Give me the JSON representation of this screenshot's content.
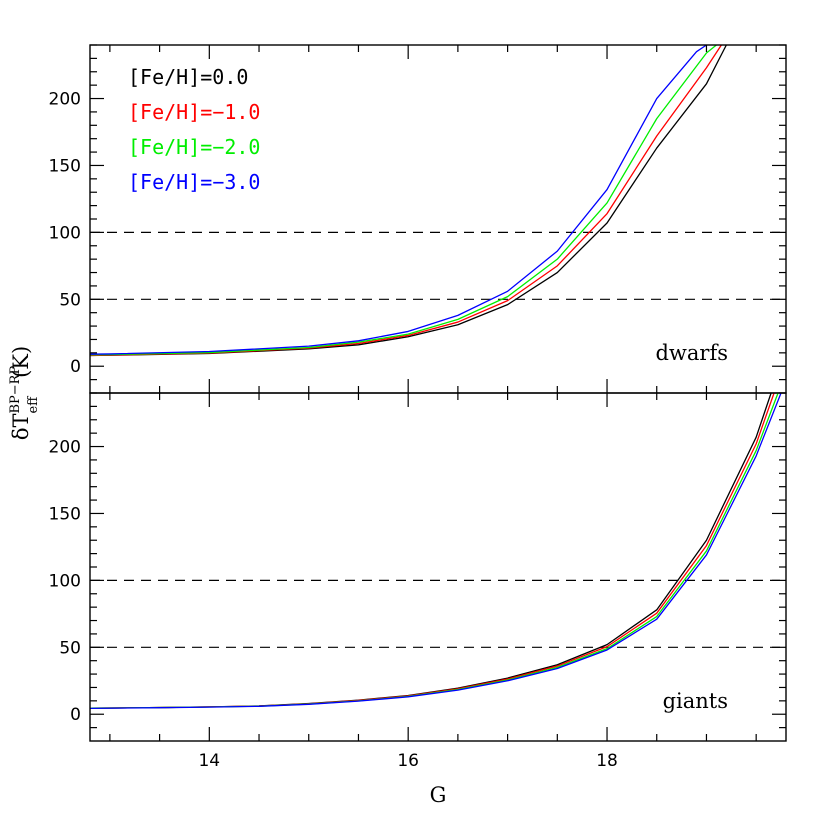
{
  "chart_data": {
    "type": "line",
    "xlabel": "G",
    "ylabel": {
      "prefix": "δT",
      "superscript": "BP−RP",
      "subscript": "eff",
      "unit": "(K)"
    },
    "xlim": [
      12.8,
      19.8
    ],
    "xticks": [
      {
        "value": 14,
        "label": "14"
      },
      {
        "value": 16,
        "label": "16"
      },
      {
        "value": 18,
        "label": "18"
      }
    ],
    "panels": [
      {
        "label": "dwarfs",
        "ylim": [
          -20,
          240
        ],
        "yticks": [
          {
            "value": 0,
            "label": "0"
          },
          {
            "value": 50,
            "label": "50"
          },
          {
            "value": 100,
            "label": "100"
          },
          {
            "value": 150,
            "label": "150"
          },
          {
            "value": 200,
            "label": "200"
          }
        ],
        "reference_lines": [
          50,
          100
        ],
        "series": [
          {
            "name": "[Fe/H]=0.0",
            "color": "#000000",
            "x": [
              12.8,
              13.0,
              14.0,
              15.0,
              15.5,
              16.0,
              16.5,
              17.0,
              17.5,
              18.0,
              18.5,
              19.0,
              19.2
            ],
            "y": [
              8,
              8.2,
              9.5,
              13,
              16,
              22,
              31,
              46,
              70,
              107,
              163,
              211,
              240
            ]
          },
          {
            "name": "[Fe/H]=−1.0",
            "color": "#ff0000",
            "x": [
              12.8,
              13.0,
              14.0,
              15.0,
              15.5,
              16.0,
              16.5,
              17.0,
              17.5,
              18.0,
              18.5,
              19.0,
              19.15
            ],
            "y": [
              8,
              8.3,
              9.8,
              13.5,
              17,
              23,
              33,
              49,
              75,
              114,
              172,
              223,
              240
            ]
          },
          {
            "name": "[Fe/H]=−2.0",
            "color": "#00ee00",
            "x": [
              12.8,
              13.0,
              14.0,
              15.0,
              15.5,
              16.0,
              16.5,
              17.0,
              17.5,
              18.0,
              18.5,
              19.0,
              19.1
            ],
            "y": [
              8.5,
              8.7,
              10.2,
              14,
              18,
              24,
              35,
              52,
              80,
              122,
              185,
              234,
              240
            ]
          },
          {
            "name": "[Fe/H]=−3.0",
            "color": "#0000ff",
            "x": [
              12.8,
              13.0,
              14.0,
              15.0,
              15.5,
              16.0,
              16.5,
              17.0,
              17.5,
              18.0,
              18.5,
              18.9,
              19.0
            ],
            "y": [
              9,
              9.2,
              11,
              15,
              19,
              26,
              38,
              56,
              86,
              132,
              200,
              235,
              240
            ]
          }
        ]
      },
      {
        "label": "giants",
        "ylim": [
          -20,
          240
        ],
        "yticks": [
          {
            "value": 0,
            "label": "0"
          },
          {
            "value": 50,
            "label": "50"
          },
          {
            "value": 100,
            "label": "100"
          },
          {
            "value": 150,
            "label": "150"
          },
          {
            "value": 200,
            "label": "200"
          }
        ],
        "reference_lines": [
          50,
          100
        ],
        "series": [
          {
            "name": "[Fe/H]=0.0",
            "color": "#000000",
            "x": [
              12.8,
              13.5,
              14.0,
              14.5,
              15.0,
              15.5,
              16.0,
              16.5,
              17.0,
              17.5,
              18.0,
              18.5,
              19.0,
              19.5,
              19.65
            ],
            "y": [
              4.5,
              5,
              5.5,
              6.2,
              8,
              10.5,
              14,
              19.5,
              27,
              37,
              52,
              78,
              130,
              207,
              240
            ]
          },
          {
            "name": "[Fe/H]=−1.0",
            "color": "#ff0000",
            "x": [
              12.8,
              13.5,
              14.0,
              14.5,
              15.0,
              15.5,
              16.0,
              16.5,
              17.0,
              17.5,
              18.0,
              18.5,
              19.0,
              19.5,
              19.68
            ],
            "y": [
              4.5,
              5,
              5.5,
              6.1,
              7.8,
              10.3,
              13.7,
              19,
              26.3,
              36,
              50.5,
              75.5,
              126,
              202,
              240
            ]
          },
          {
            "name": "[Fe/H]=−2.0",
            "color": "#00ee00",
            "x": [
              12.8,
              13.5,
              14.0,
              14.5,
              15.0,
              15.5,
              16.0,
              16.5,
              17.0,
              17.5,
              18.0,
              18.5,
              19.0,
              19.5,
              19.72
            ],
            "y": [
              4.5,
              5,
              5.4,
              6,
              7.6,
              10,
              13.3,
              18.5,
              25.6,
              35,
              49,
              73,
              122,
              197,
              240
            ]
          },
          {
            "name": "[Fe/H]=−3.0",
            "color": "#0000ff",
            "x": [
              12.8,
              13.5,
              14.0,
              14.5,
              15.0,
              15.5,
              16.0,
              16.5,
              17.0,
              17.5,
              18.0,
              18.5,
              19.0,
              19.5,
              19.75
            ],
            "y": [
              4.4,
              4.9,
              5.3,
              5.9,
              7.4,
              9.8,
              13,
              18,
              25,
              34.2,
              48,
              71,
              119,
              193,
              240
            ]
          }
        ]
      }
    ],
    "legend": {
      "placement": "top-left of upper panel",
      "entries": [
        {
          "text": "[Fe/H]=0.0",
          "color": "#000000"
        },
        {
          "text": "[Fe/H]=−1.0",
          "color": "#ff0000"
        },
        {
          "text": "[Fe/H]=−2.0",
          "color": "#00ee00"
        },
        {
          "text": "[Fe/H]=−3.0",
          "color": "#0000ff"
        }
      ]
    },
    "grid": false
  }
}
